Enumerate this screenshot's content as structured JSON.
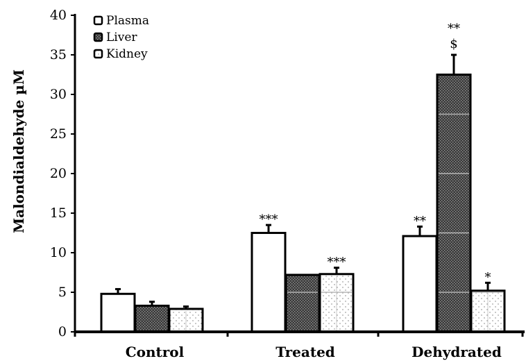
{
  "chart_data": {
    "type": "bar",
    "title": "",
    "xlabel": "",
    "ylabel": "Malondialdehyde µM",
    "ylim": [
      0,
      40
    ],
    "yticks": [
      0,
      5,
      10,
      15,
      20,
      25,
      30,
      35,
      40
    ],
    "categories": [
      "Control",
      "Treated",
      "Dehydrated"
    ],
    "series": [
      {
        "name": "Plasma",
        "values": [
          4.8,
          12.5,
          12.1
        ],
        "errors": [
          0.6,
          1.0,
          1.2
        ],
        "fill": "#ffffff",
        "pattern": "none"
      },
      {
        "name": "Liver",
        "values": [
          3.3,
          7.2,
          32.5
        ],
        "errors": [
          0.5,
          0.0,
          2.5
        ],
        "fill": "#3a3a3a",
        "pattern": "dense-dots"
      },
      {
        "name": "Kidney",
        "values": [
          2.9,
          7.3,
          5.2
        ],
        "errors": [
          0.3,
          0.8,
          1.0
        ],
        "fill": "#ffffff",
        "pattern": "sparse-dots"
      }
    ],
    "annotations": [
      {
        "category": 1,
        "series": 0,
        "text": "***"
      },
      {
        "category": 1,
        "series": 2,
        "text": "***"
      },
      {
        "category": 2,
        "series": 0,
        "text": "**"
      },
      {
        "category": 2,
        "series": 1,
        "text": "$"
      },
      {
        "category": 2,
        "series": 1,
        "text": "**"
      },
      {
        "category": 2,
        "series": 2,
        "text": "*"
      }
    ],
    "legend": "top-left",
    "grid": false
  }
}
